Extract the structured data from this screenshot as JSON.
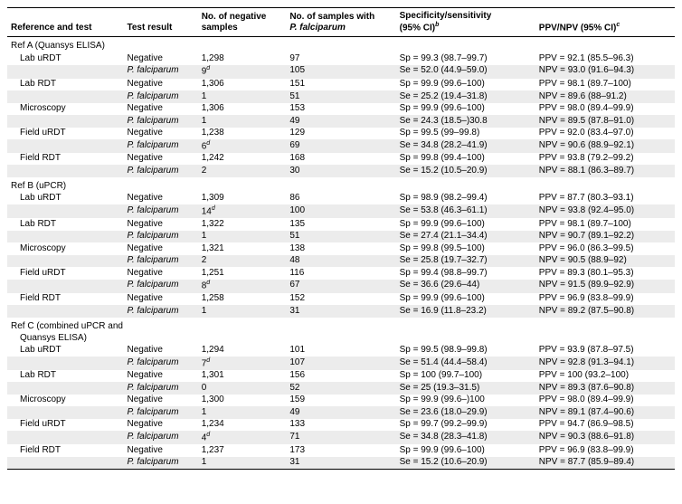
{
  "columns": {
    "c0": "Reference and test",
    "c1": "Test result",
    "c2_l1": "No. of negative",
    "c2_l2": "samples",
    "c3_l1": "No. of samples with",
    "c3_l2": "P. falciparum",
    "c4_l1": "Specificity/sensitivity",
    "c4_l2": "(95% CI)",
    "c4_sup": "b",
    "c5": "PPV/NPV (95% CI)",
    "c5_sup": "c"
  },
  "test_results": {
    "neg": "Negative",
    "pf": "P. falciparum"
  },
  "sections": [
    {
      "title": "Ref A (Quansys ELISA)",
      "multiline": false,
      "tests": [
        {
          "name": "Lab uRDT",
          "rows": [
            {
              "tr": "neg",
              "neg": "1,298",
              "pf": "97",
              "spse": "Sp = 99.3 (98.7–99.7)",
              "pn": "PPV = 92.1 (85.5–96.3)"
            },
            {
              "tr": "pf",
              "neg": "9",
              "neg_sup": "d",
              "pf": "105",
              "spse": "Se = 52.0 (44.9–59.0)",
              "pn": "NPV = 93.0 (91.6–94.3)"
            }
          ]
        },
        {
          "name": "Lab RDT",
          "rows": [
            {
              "tr": "neg",
              "neg": "1,306",
              "pf": "151",
              "spse": "Sp = 99.9 (99.6–100)",
              "pn": "PPV = 98.1 (89.7–100)"
            },
            {
              "tr": "pf",
              "neg": "1",
              "pf": "51",
              "spse": "Se = 25.2 (19.4–31.8)",
              "pn": "NPV = 89.6 (88–91.2)"
            }
          ]
        },
        {
          "name": "Microscopy",
          "rows": [
            {
              "tr": "neg",
              "neg": "1,306",
              "pf": "153",
              "spse": "Sp = 99.9 (99.6–100)",
              "pn": "PPV = 98.0 (89.4–99.9)"
            },
            {
              "tr": "pf",
              "neg": "1",
              "pf": "49",
              "spse": "Se = 24.3 (18.5–)30.8",
              "pn": "NPV = 89.5 (87.8–91.0)"
            }
          ]
        },
        {
          "name": "Field uRDT",
          "rows": [
            {
              "tr": "neg",
              "neg": "1,238",
              "pf": "129",
              "spse": "Sp = 99.5 (99–99.8)",
              "pn": "PPV = 92.0 (83.4–97.0)"
            },
            {
              "tr": "pf",
              "neg": "6",
              "neg_sup": "d",
              "pf": "69",
              "spse": "Se = 34.8 (28.2–41.9)",
              "pn": "NPV = 90.6 (88.9–92.1)"
            }
          ]
        },
        {
          "name": "Field RDT",
          "rows": [
            {
              "tr": "neg",
              "neg": "1,242",
              "pf": "168",
              "spse": "Sp = 99.8 (99.4–100)",
              "pn": "PPV = 93.8 (79.2–99.2)"
            },
            {
              "tr": "pf",
              "neg": "2",
              "pf": "30",
              "spse": "Se = 15.2 (10.5–20.9)",
              "pn": "NPV = 88.1 (86.3–89.7)"
            }
          ]
        }
      ]
    },
    {
      "title": "Ref B (uPCR)",
      "multiline": false,
      "tests": [
        {
          "name": "Lab uRDT",
          "rows": [
            {
              "tr": "neg",
              "neg": "1,309",
              "pf": "86",
              "spse": "Sp = 98.9 (98.2–99.4)",
              "pn": "PPV = 87.7 (80.3–93.1)"
            },
            {
              "tr": "pf",
              "neg": "14",
              "neg_sup": "d",
              "pf": "100",
              "spse": "Se = 53.8 (46.3–61.1)",
              "pn": "NPV = 93.8 (92.4–95.0)"
            }
          ]
        },
        {
          "name": "Lab RDT",
          "rows": [
            {
              "tr": "neg",
              "neg": "1,322",
              "pf": "135",
              "spse": "Sp = 99.9 (99.6–100)",
              "pn": "PPV = 98.1 (89.7–100)"
            },
            {
              "tr": "pf",
              "neg": "1",
              "pf": "51",
              "spse": "Se = 27.4 (21.1–34.4)",
              "pn": "NPV = 90.7 (89.1–92.2)"
            }
          ]
        },
        {
          "name": "Microscopy",
          "rows": [
            {
              "tr": "neg",
              "neg": "1,321",
              "pf": "138",
              "spse": "Sp = 99.8 (99.5–100)",
              "pn": "PPV = 96.0 (86.3–99.5)"
            },
            {
              "tr": "pf",
              "neg": "2",
              "pf": "48",
              "spse": "Se = 25.8 (19.7–32.7)",
              "pn": "NPV = 90.5 (88.9–92)"
            }
          ]
        },
        {
          "name": "Field uRDT",
          "rows": [
            {
              "tr": "neg",
              "neg": "1,251",
              "pf": "116",
              "spse": "Sp = 99.4 (98.8–99.7)",
              "pn": "PPV = 89.3 (80.1–95.3)"
            },
            {
              "tr": "pf",
              "neg": "8",
              "neg_sup": "d",
              "pf": "67",
              "spse": "Se = 36.6 (29.6–44)",
              "pn": "NPV = 91.5 (89.9–92.9)"
            }
          ]
        },
        {
          "name": "Field RDT",
          "rows": [
            {
              "tr": "neg",
              "neg": "1,258",
              "pf": "152",
              "spse": "Sp = 99.9 (99.6–100)",
              "pn": "PPV = 96.9 (83.8–99.9)"
            },
            {
              "tr": "pf",
              "neg": "1",
              "pf": "31",
              "spse": "Se = 16.9 (11.8–23.2)",
              "pn": "NPV = 89.2 (87.5–90.8)"
            }
          ]
        }
      ]
    },
    {
      "title": "Ref C (combined uPCR and",
      "title2": "Quansys ELISA)",
      "multiline": true,
      "tests": [
        {
          "name": "Lab uRDT",
          "rows": [
            {
              "tr": "neg",
              "neg": "1,294",
              "pf": "101",
              "spse": "Sp = 99.5 (98.9–99.8)",
              "pn": "PPV = 93.9 (87.8–97.5)"
            },
            {
              "tr": "pf",
              "neg": "7",
              "neg_sup": "d",
              "pf": "107",
              "spse": "Se = 51.4 (44.4–58.4)",
              "pn": "NPV = 92.8 (91.3–94.1)"
            }
          ]
        },
        {
          "name": "Lab RDT",
          "rows": [
            {
              "tr": "neg",
              "neg": "1,301",
              "pf": "156",
              "spse": "Sp = 100 (99.7–100)",
              "pn": "PPV = 100 (93.2–100)"
            },
            {
              "tr": "pf",
              "neg": "0",
              "pf": "52",
              "spse": "Se = 25 (19.3–31.5)",
              "pn": "NPV = 89.3 (87.6–90.8)"
            }
          ]
        },
        {
          "name": "Microscopy",
          "rows": [
            {
              "tr": "neg",
              "neg": "1,300",
              "pf": "159",
              "spse": "Sp = 99.9 (99.6–)100",
              "pn": "PPV = 98.0 (89.4–99.9)"
            },
            {
              "tr": "pf",
              "neg": "1",
              "pf": "49",
              "spse": "Se = 23.6 (18.0–29.9)",
              "pn": "NPV = 89.1 (87.4–90.6)"
            }
          ]
        },
        {
          "name": "Field uRDT",
          "rows": [
            {
              "tr": "neg",
              "neg": "1,234",
              "pf": "133",
              "spse": "Sp = 99.7 (99.2–99.9)",
              "pn": "PPV = 94.7 (86.9–98.5)"
            },
            {
              "tr": "pf",
              "neg": "4",
              "neg_sup": "d",
              "pf": "71",
              "spse": "Se = 34.8 (28.3–41.8)",
              "pn": "NPV = 90.3 (88.6–91.8)"
            }
          ]
        },
        {
          "name": "Field RDT",
          "rows": [
            {
              "tr": "neg",
              "neg": "1,237",
              "pf": "173",
              "spse": "Sp = 99.9 (99.6–100)",
              "pn": "PPV = 96.9 (83.8–99.9)"
            },
            {
              "tr": "pf",
              "neg": "1",
              "pf": "31",
              "spse": "Se = 15.2 (10.6–20.9)",
              "pn": "NPV = 87.7 (85.9–89.4)"
            }
          ]
        }
      ]
    }
  ],
  "style": {
    "shade_color": "#ececec",
    "font_size": 10,
    "border_color": "#000000"
  }
}
